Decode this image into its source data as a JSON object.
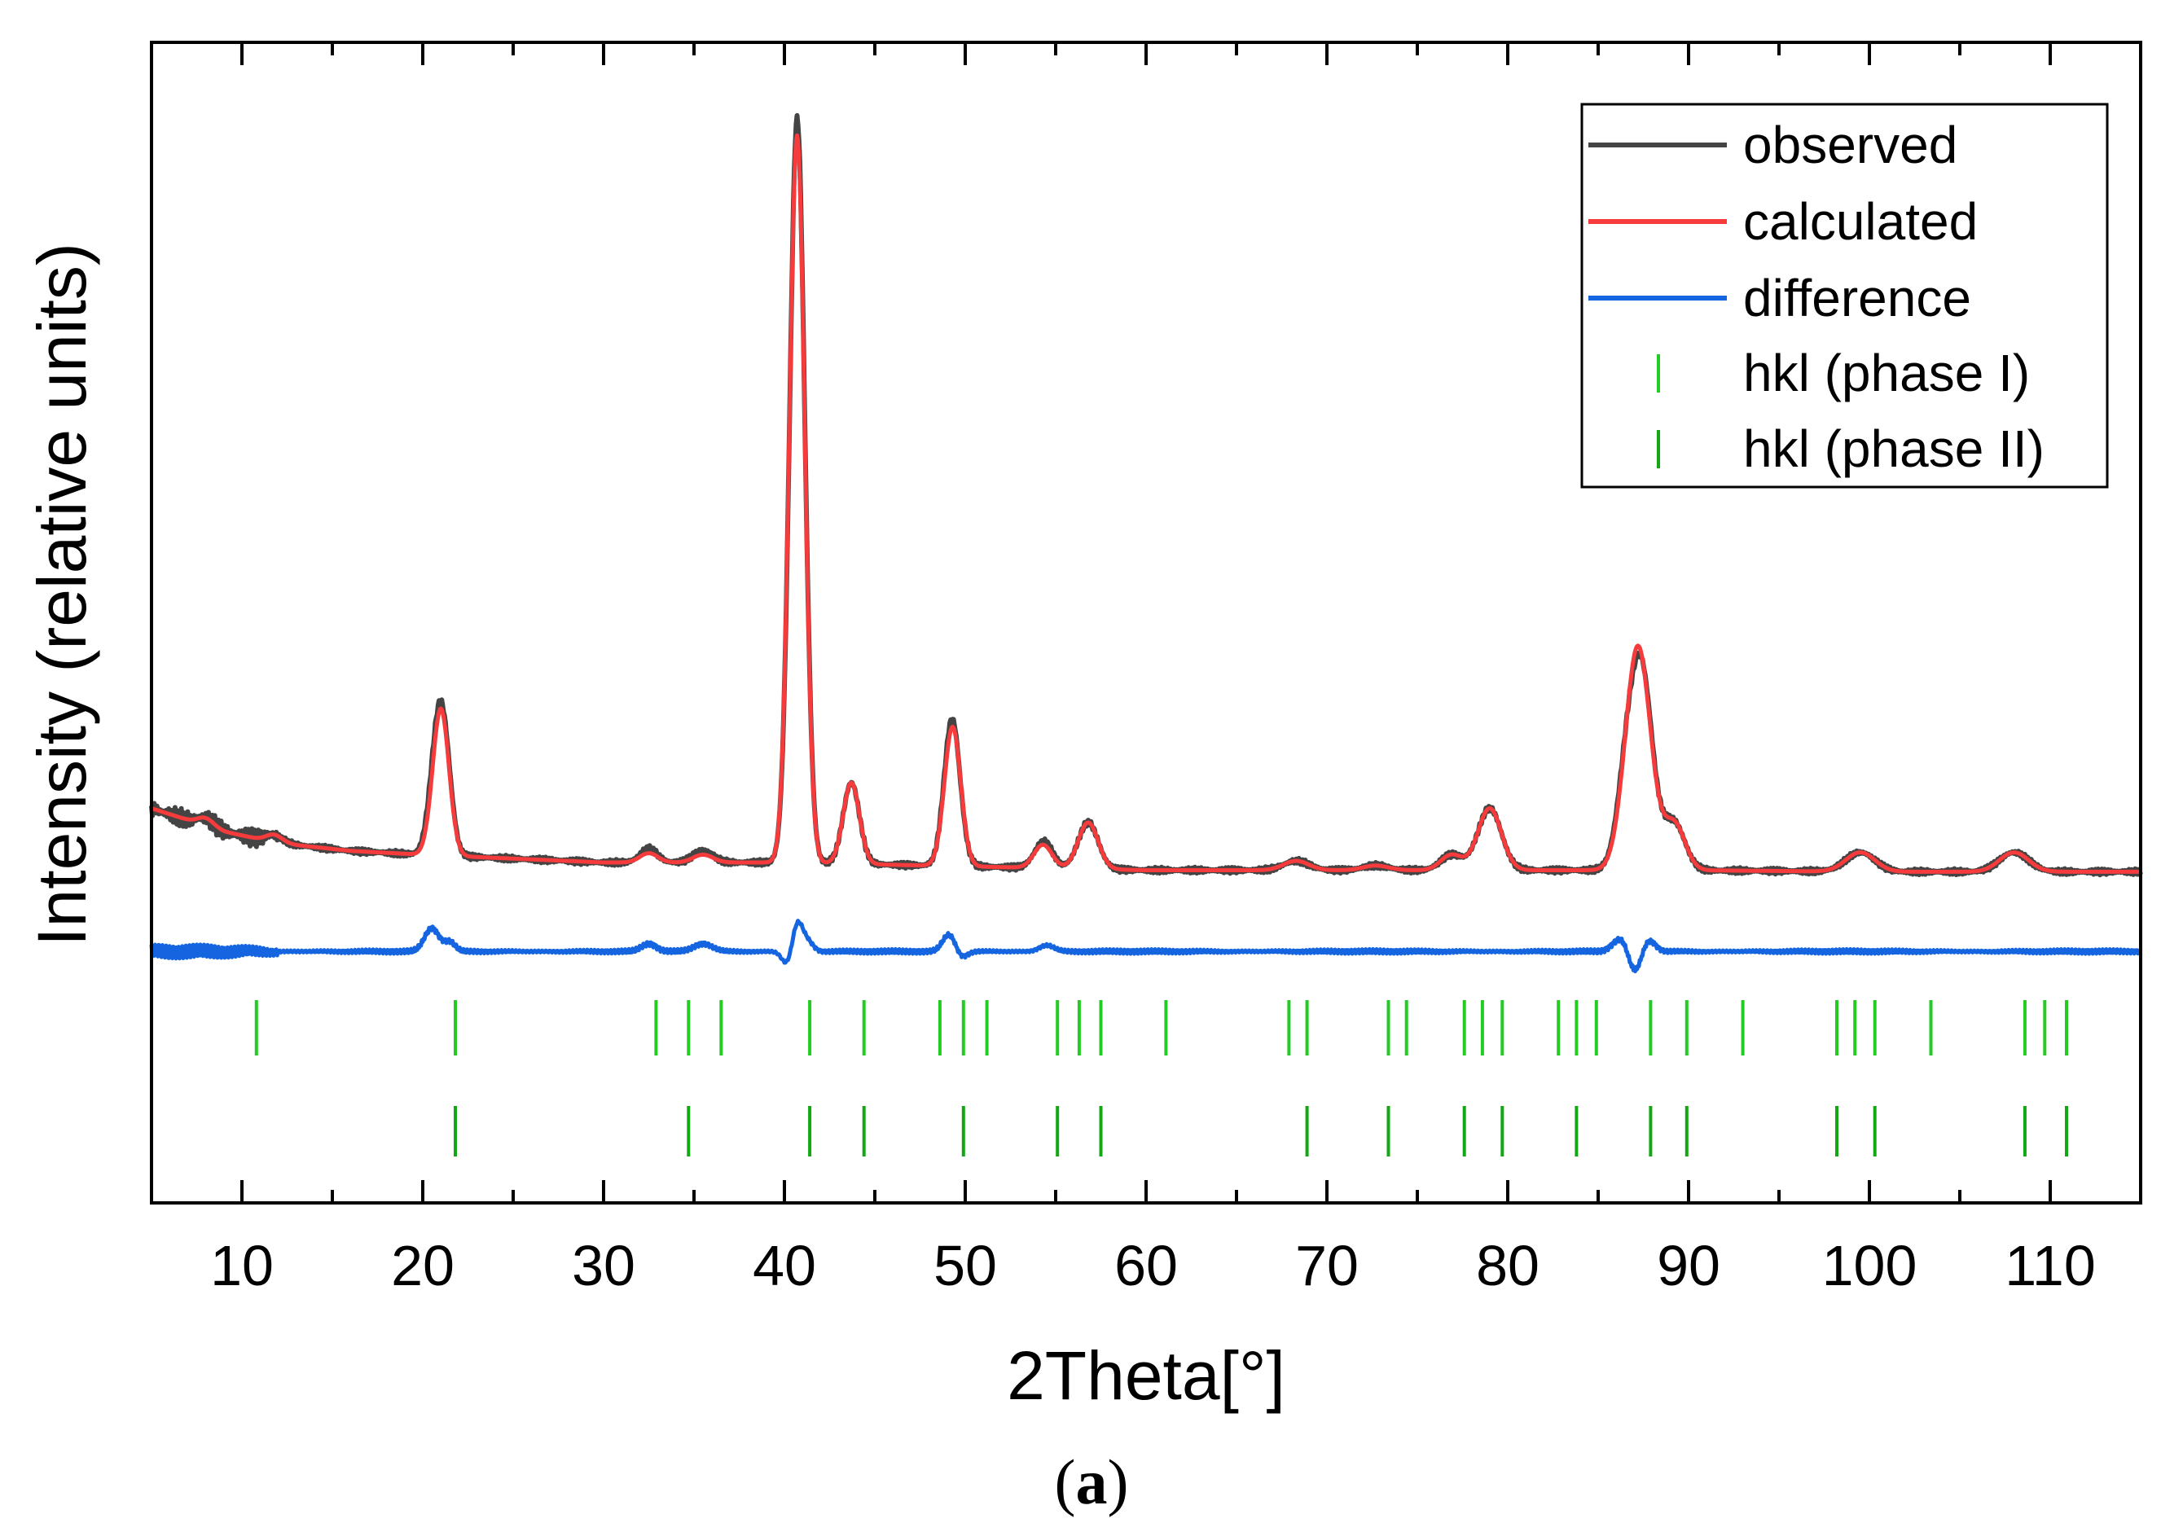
{
  "chart_data": {
    "type": "line",
    "title": "",
    "xlabel": "2Theta[°]",
    "ylabel": "Intensity (relative units)",
    "xlim": [
      5,
      115
    ],
    "ylim": [
      -0.38,
      1.12
    ],
    "xticks": [
      10,
      20,
      30,
      40,
      50,
      60,
      70,
      80,
      90,
      100,
      110
    ],
    "xtick_labels": [
      "10",
      "20",
      "30",
      "40",
      "50",
      "60",
      "70",
      "80",
      "90",
      "100",
      "110"
    ],
    "y_ticks_labeled": false,
    "grid": false,
    "legend_position": "top-right",
    "baseline": {
      "points": [
        [
          5,
          0.13
        ],
        [
          7,
          0.115
        ],
        [
          9,
          0.1
        ],
        [
          12,
          0.085
        ],
        [
          16,
          0.075
        ],
        [
          20,
          0.07
        ],
        [
          25,
          0.065
        ],
        [
          30,
          0.06
        ],
        [
          40,
          0.06
        ],
        [
          50,
          0.055
        ],
        [
          60,
          0.05
        ],
        [
          70,
          0.05
        ],
        [
          80,
          0.05
        ],
        [
          90,
          0.05
        ],
        [
          100,
          0.048
        ],
        [
          115,
          0.048
        ]
      ]
    },
    "peaks": [
      {
        "position": 8.0,
        "height": 0.01,
        "width": 0.45
      },
      {
        "position": 11.8,
        "height": 0.01,
        "width": 0.45
      },
      {
        "position": 21.0,
        "height": 0.19,
        "width": 0.45
      },
      {
        "position": 32.5,
        "height": 0.012,
        "width": 0.5
      },
      {
        "position": 35.5,
        "height": 0.01,
        "width": 0.55
      },
      {
        "position": 40.7,
        "height": 0.94,
        "width": 0.42
      },
      {
        "position": 43.7,
        "height": 0.105,
        "width": 0.45
      },
      {
        "position": 49.3,
        "height": 0.18,
        "width": 0.45
      },
      {
        "position": 54.3,
        "height": 0.03,
        "width": 0.5
      },
      {
        "position": 56.8,
        "height": 0.06,
        "width": 0.55
      },
      {
        "position": 68.3,
        "height": 0.012,
        "width": 0.7
      },
      {
        "position": 72.7,
        "height": 0.006,
        "width": 0.7
      },
      {
        "position": 76.9,
        "height": 0.02,
        "width": 0.6
      },
      {
        "position": 79.0,
        "height": 0.08,
        "width": 0.65
      },
      {
        "position": 87.2,
        "height": 0.29,
        "width": 0.7
      },
      {
        "position": 89.2,
        "height": 0.06,
        "width": 0.6
      },
      {
        "position": 99.5,
        "height": 0.025,
        "width": 0.8
      },
      {
        "position": 108.0,
        "height": 0.025,
        "width": 0.8
      }
    ],
    "difference_offset": -0.055,
    "difference_features": [
      {
        "position": 20.5,
        "height": 0.03,
        "width": 0.4
      },
      {
        "position": 21.5,
        "height": 0.012,
        "width": 0.3
      },
      {
        "position": 32.5,
        "height": 0.01,
        "width": 0.4
      },
      {
        "position": 35.5,
        "height": 0.01,
        "width": 0.5
      },
      {
        "position": 40.2,
        "height": -0.02,
        "width": 0.3
      },
      {
        "position": 40.7,
        "height": 0.04,
        "width": 0.3
      },
      {
        "position": 41.3,
        "height": 0.012,
        "width": 0.3
      },
      {
        "position": 49.1,
        "height": 0.022,
        "width": 0.35
      },
      {
        "position": 49.8,
        "height": -0.008,
        "width": 0.3
      },
      {
        "position": 54.5,
        "height": 0.008,
        "width": 0.4
      },
      {
        "position": 86.3,
        "height": 0.018,
        "width": 0.45
      },
      {
        "position": 87.0,
        "height": -0.03,
        "width": 0.35
      },
      {
        "position": 87.8,
        "height": 0.015,
        "width": 0.35
      }
    ],
    "hkl_phase_I_positions": [
      10.8,
      21.8,
      32.9,
      34.7,
      36.5,
      41.4,
      44.4,
      48.6,
      49.9,
      51.2,
      55.1,
      56.3,
      57.5,
      61.1,
      67.9,
      68.9,
      73.4,
      74.4,
      77.6,
      78.6,
      79.7,
      82.8,
      83.8,
      84.9,
      87.9,
      89.9,
      93.0,
      98.2,
      99.2,
      100.3,
      103.4,
      108.6,
      109.7,
      110.9
    ],
    "hkl_phase_II_positions": [
      21.8,
      34.7,
      41.4,
      44.4,
      49.9,
      55.1,
      57.5,
      68.9,
      73.4,
      77.6,
      79.7,
      83.8,
      87.9,
      89.9,
      98.2,
      100.3,
      108.6,
      110.9
    ],
    "series": [
      {
        "name": "observed",
        "color": "#444444"
      },
      {
        "name": "calculated",
        "color": "#f53b3b"
      },
      {
        "name": "difference",
        "color": "#1565e0"
      },
      {
        "name": "hkl (phase I)",
        "color": "#22cc22",
        "marker": "|"
      },
      {
        "name": "hkl (phase II)",
        "color": "#13a813",
        "marker": "|"
      }
    ],
    "annotations": []
  },
  "figure": {
    "caption_letter": "a",
    "caption_open": "(",
    "caption_close": ")"
  }
}
